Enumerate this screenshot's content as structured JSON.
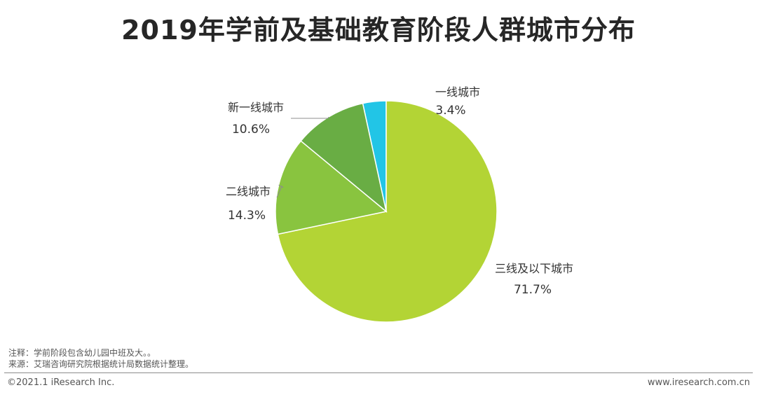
{
  "chart_data": {
    "type": "pie",
    "title": "2019年学前及基础教育阶段人群城市分布",
    "slices": [
      {
        "label": "一线城市",
        "value": 3.4,
        "display": "3.4%",
        "color": "#22c5e6"
      },
      {
        "label": "三线及以下城市",
        "value": 71.7,
        "display": "71.7%",
        "color": "#b3d435"
      },
      {
        "label": "二线城市",
        "value": 14.3,
        "display": "14.3%",
        "color": "#89c43f"
      },
      {
        "label": "新一线城市",
        "value": 10.6,
        "display": "10.6%",
        "color": "#69ad44"
      }
    ]
  },
  "footer": {
    "note": "注释：学前阶段包含幼儿园中班及大。。",
    "source": "来源：艾瑞咨询研究院根据统计局数据统计整理。",
    "copyright": "©2021.1 iResearch Inc.",
    "website": "www.iresearch.com.cn"
  }
}
